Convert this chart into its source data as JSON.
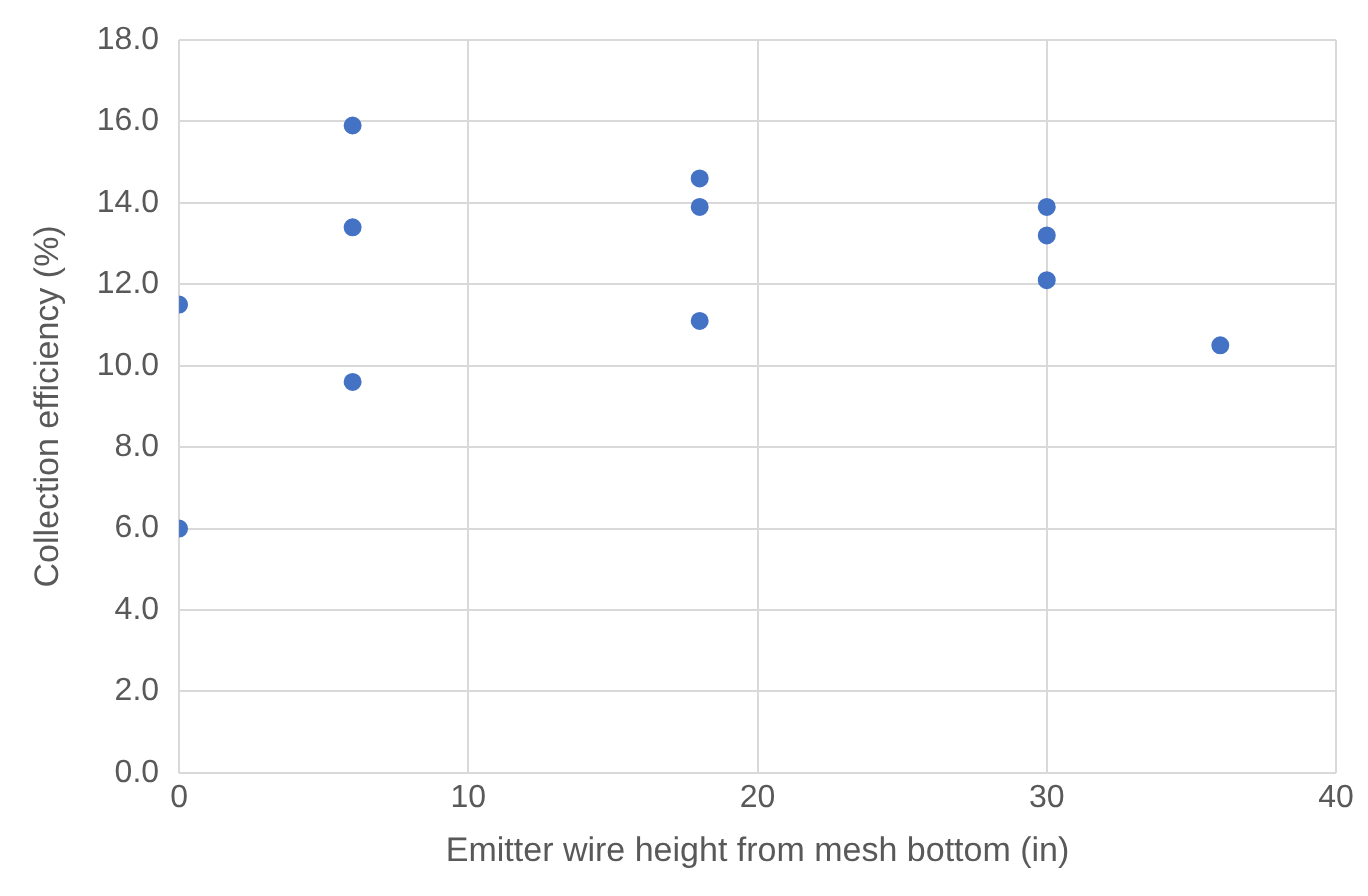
{
  "chart_data": {
    "type": "scatter",
    "xlabel": "Emitter wire height from mesh bottom (in)",
    "ylabel": "Collection efficiency (%)",
    "series": [
      {
        "color": "#4472c4",
        "x": [
          0,
          0,
          6,
          6,
          6,
          18,
          18,
          18,
          30,
          30,
          30,
          36
        ],
        "values": [
          11.5,
          6.0,
          15.9,
          13.4,
          9.6,
          14.6,
          13.9,
          11.1,
          13.9,
          13.2,
          12.1,
          10.5
        ]
      }
    ],
    "xlim": [
      0,
      40
    ],
    "xticks": [
      0,
      10,
      20,
      30,
      40
    ],
    "ylim": [
      0,
      18
    ],
    "yticks": [
      {
        "value": 0,
        "label": "0.0"
      },
      {
        "value": 2,
        "label": "2.0"
      },
      {
        "value": 4,
        "label": "4.0"
      },
      {
        "value": 6,
        "label": "6.0"
      },
      {
        "value": 8,
        "label": "8.0"
      },
      {
        "value": 10,
        "label": "10.0"
      },
      {
        "value": 12,
        "label": "12.0"
      },
      {
        "value": 14,
        "label": "14.0"
      },
      {
        "value": 16,
        "label": "16.0"
      },
      {
        "value": 18,
        "label": "18.0"
      }
    ],
    "grid": true,
    "legend": false,
    "marker": "circle"
  }
}
